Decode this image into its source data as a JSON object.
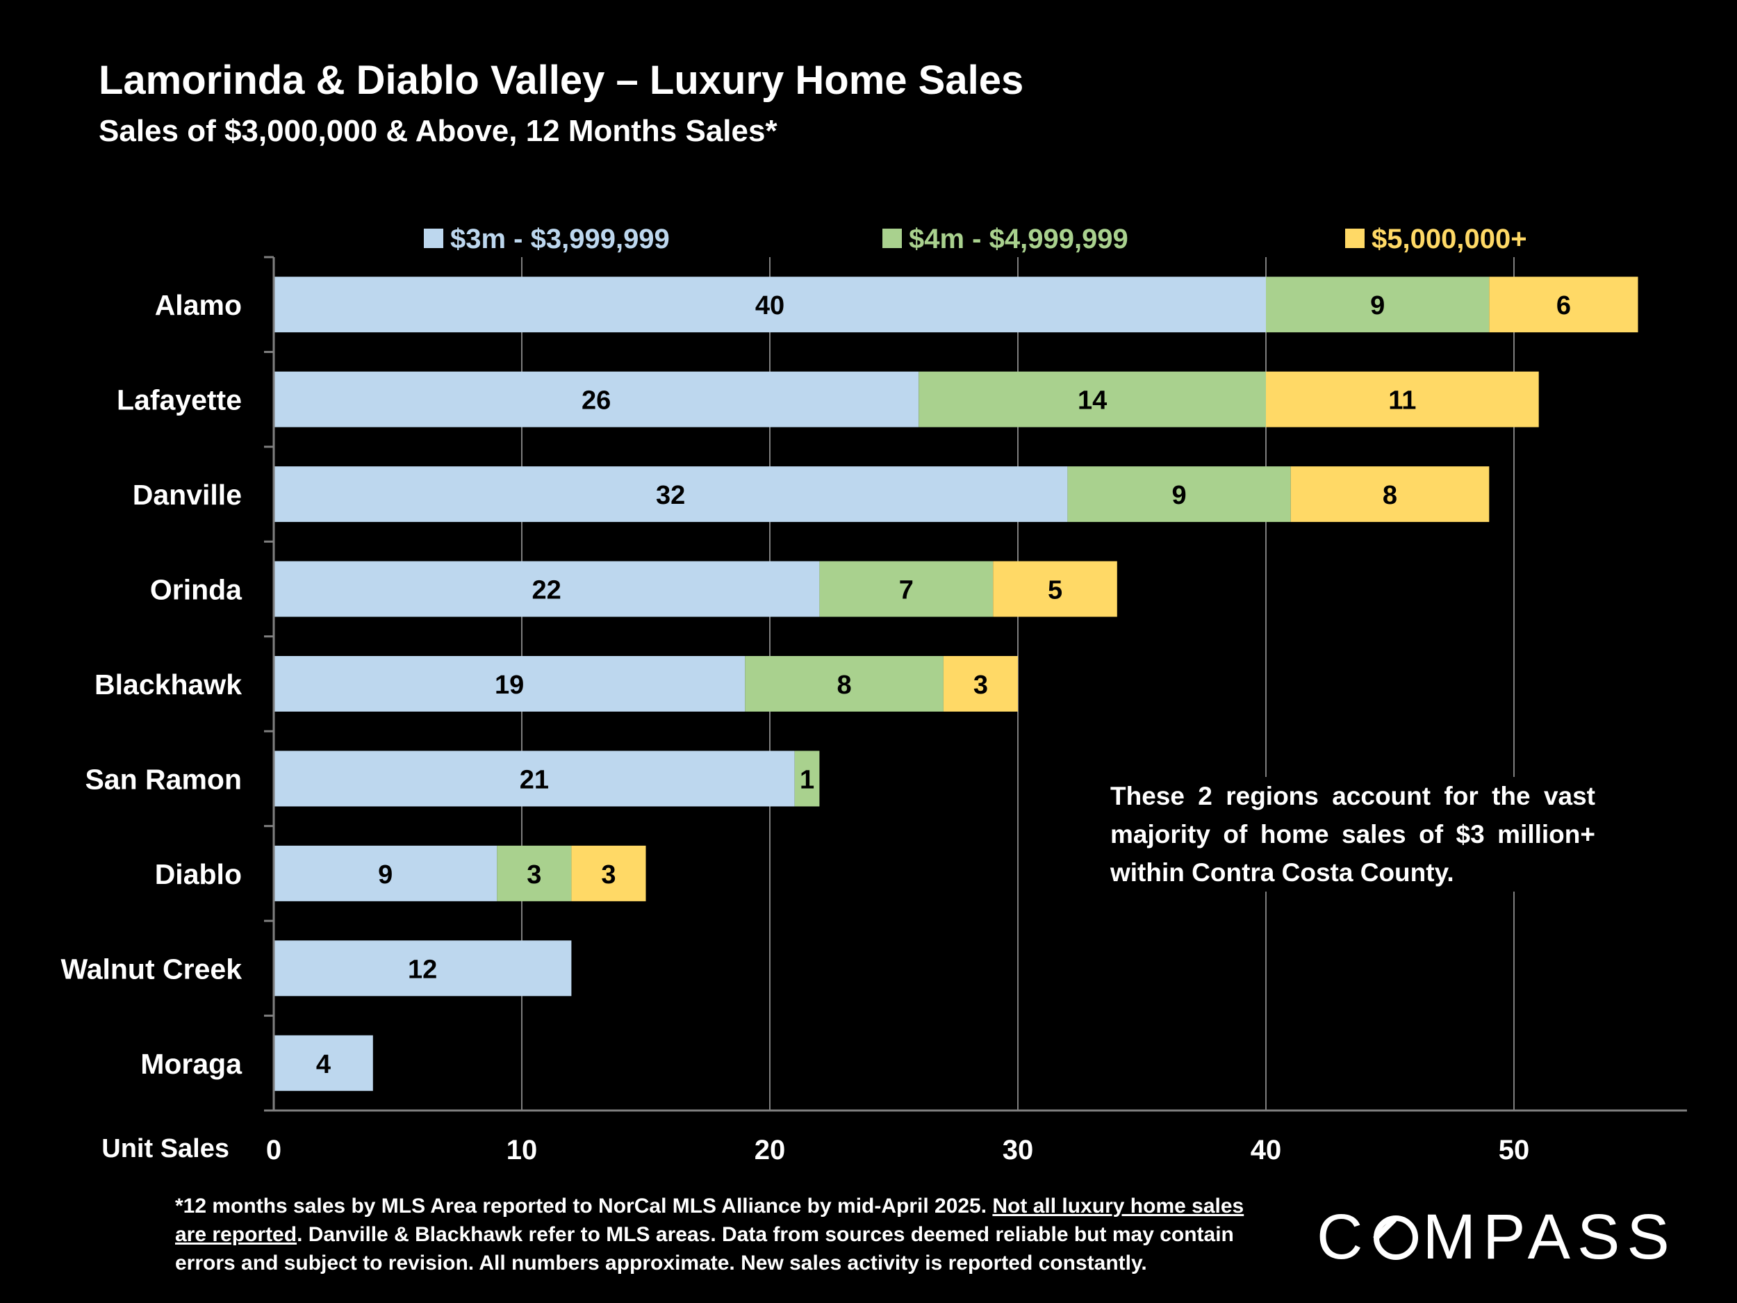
{
  "title": "Lamorinda & Diablo Valley – Luxury Home Sales",
  "subtitle": "Sales of $3,000,000 & Above, 12 Months Sales*",
  "annotation": "These 2 regions account for the vast majority of home sales of $3 million+ within Contra Costa County.",
  "footnote": {
    "part1": "*12 months sales by MLS Area reported to NorCal MLS Alliance by mid-April 2025. ",
    "underlined": "Not all luxury home sales are reported",
    "part2": ". Danville & Blackhawk refer to MLS areas. Data from sources deemed reliable but may contain errors and subject to revision. All numbers approximate. New sales activity is reported constantly."
  },
  "logo": {
    "pre": "C",
    "post": "MPASS"
  },
  "chart_data": {
    "type": "bar",
    "orientation": "horizontal",
    "stacked": true,
    "categories": [
      "Alamo",
      "Lafayette",
      "Danville",
      "Orinda",
      "Blackhawk",
      "San Ramon",
      "Diablo",
      "Walnut Creek",
      "Moraga"
    ],
    "series": [
      {
        "name": "$3m - $3,999,999",
        "color": "#bdd7ee",
        "values": [
          40,
          26,
          32,
          22,
          19,
          21,
          9,
          12,
          4
        ]
      },
      {
        "name": "$4m - $4,999,999",
        "color": "#a9d18e",
        "values": [
          9,
          14,
          9,
          7,
          8,
          1,
          3,
          0,
          0
        ]
      },
      {
        "name": "$5,000,000+",
        "color": "#ffd966",
        "values": [
          6,
          11,
          8,
          5,
          3,
          0,
          3,
          0,
          0
        ]
      }
    ],
    "xlabel": "Unit Sales",
    "xlim": [
      0,
      57
    ],
    "xticks": [
      0,
      10,
      20,
      30,
      40,
      50
    ],
    "grid": true,
    "legend": "top"
  }
}
